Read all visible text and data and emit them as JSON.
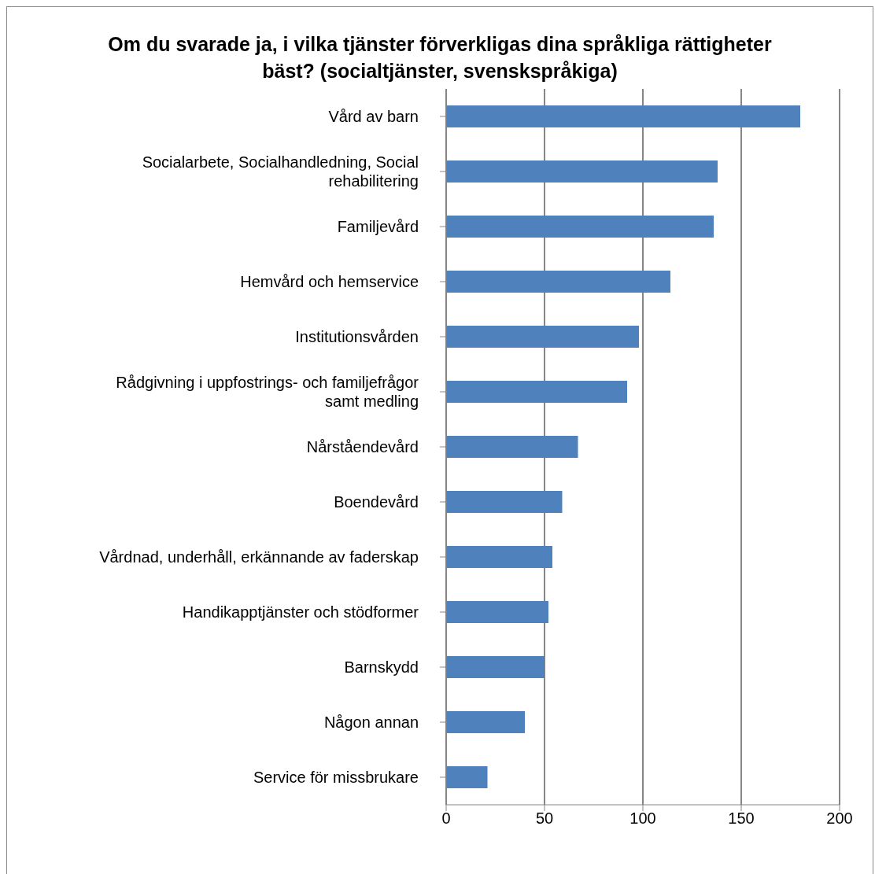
{
  "chart_data": {
    "type": "bar",
    "orientation": "horizontal",
    "title": "Om du svarade ja, i vilka tjänster förverkligas dina språkliga rättigheter bäst? (socialtjänster, svenskspråkiga)",
    "categories": [
      "Vård av barn",
      "Socialarbete, Socialhandledning, Social rehabilitering",
      "Familjevård",
      "Hemvård och hemservice",
      "Institutionsvården",
      "Rådgivning i uppfostrings- och familjefrågor samt medling",
      "Nårståendevård",
      "Boendevård",
      "Vårdnad, underhåll, erkännande av faderskap",
      "Handikapptjänster och stödformer",
      "Barnskydd",
      "Någon annan",
      "Service för missbrukare"
    ],
    "values": [
      180,
      138,
      136,
      114,
      98,
      92,
      67,
      59,
      54,
      52,
      50,
      40,
      21
    ],
    "color": "#4f81bd",
    "xlim": [
      0,
      200
    ],
    "xticks": [
      0,
      50,
      100,
      150,
      200
    ],
    "grid": "x"
  }
}
